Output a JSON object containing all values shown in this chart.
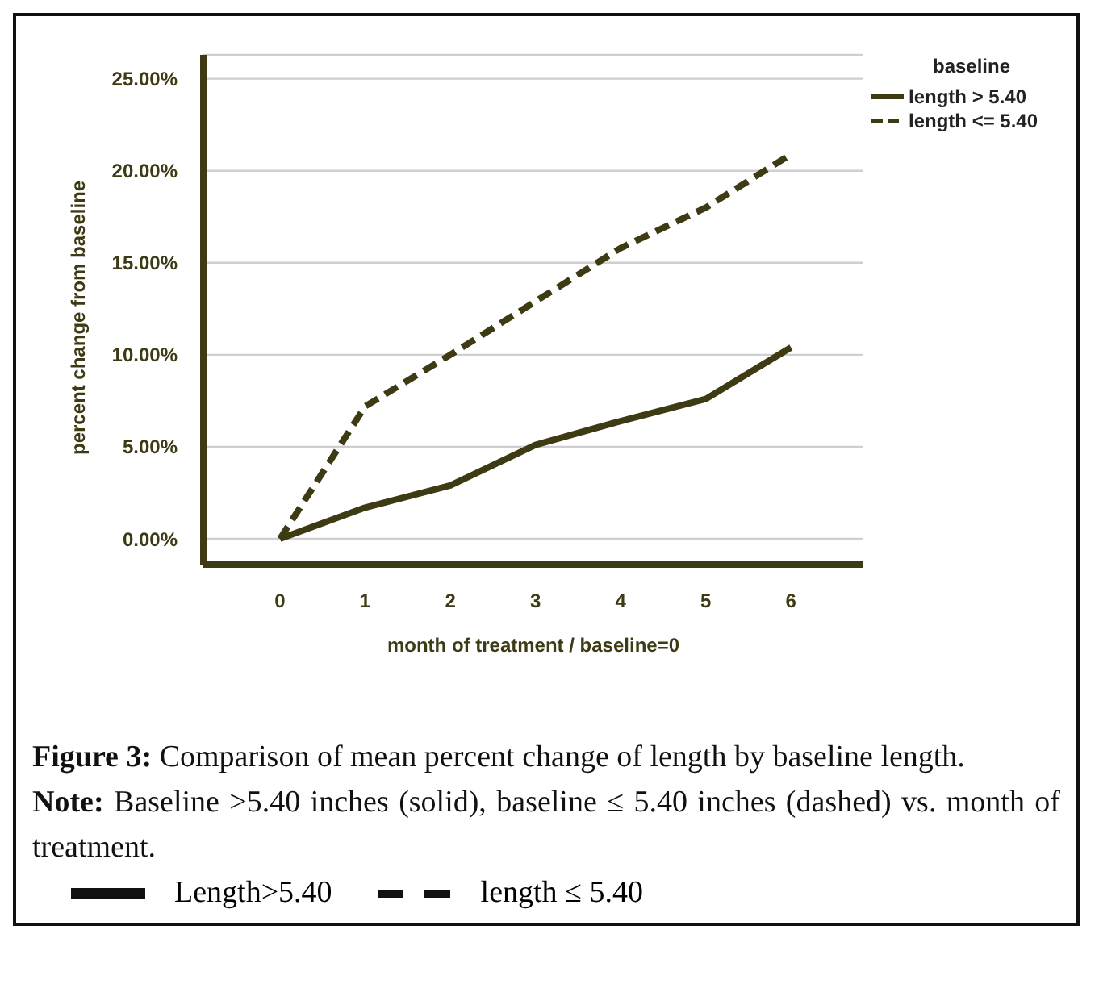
{
  "chart_data": {
    "type": "line",
    "xlabel": "month of treatment / baseline=0",
    "ylabel": "percent change from baseline",
    "legend_title": "baseline",
    "x": [
      0,
      1,
      2,
      3,
      4,
      5,
      6
    ],
    "series": [
      {
        "name": "length > 5.40",
        "color": "#3d3a14",
        "line_style": "solid",
        "values": [
          0,
          1.7,
          2.9,
          5.1,
          6.4,
          7.6,
          10.4
        ]
      },
      {
        "name": "length <= 5.40",
        "color": "#3d3a14",
        "line_style": "dashed",
        "values": [
          0,
          7.2,
          10.0,
          12.9,
          15.8,
          18.0,
          20.9
        ]
      }
    ],
    "xlim": [
      -0.9,
      6.85
    ],
    "xticks": [
      0,
      1,
      2,
      3,
      4,
      5,
      6
    ],
    "ylim": [
      -1.4,
      26.3
    ],
    "yticks": [
      {
        "value": 0,
        "label": "0.00%"
      },
      {
        "value": 5,
        "label": "5.00%"
      },
      {
        "value": 10,
        "label": "10.00%"
      },
      {
        "value": 15,
        "label": "15.00%"
      },
      {
        "value": 20,
        "label": "20.00%"
      },
      {
        "value": 25,
        "label": "25.00%"
      }
    ],
    "grid": "y",
    "legend": "top right",
    "marker": "none",
    "annotations": [
      "Figure 3: Comparison of mean percent change of length by baseline length.",
      "Note: Baseline >5.40 inches (solid), baseline ≤ 5.40 inches (dashed) vs. month of treatment.",
      "Length>5.40",
      "length ≤ 5.40"
    ]
  }
}
